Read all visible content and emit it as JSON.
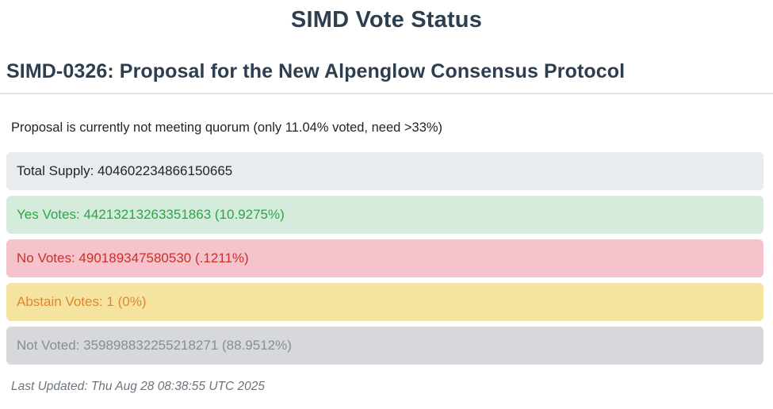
{
  "page": {
    "title": "SIMD Vote Status",
    "heading": "SIMD-0326: Proposal for the New Alpenglow Consensus Protocol",
    "quorum_status": "Proposal is currently not meeting quorum (only 11.04% voted, need >33%)",
    "quorum_voted_percent": "11.04%",
    "quorum_needed_percent": ">33%",
    "last_updated": "Last Updated: Thu Aug 28 08:38:55 UTC 2025"
  },
  "colors": {
    "heading_text": "#2c3e50",
    "divider": "#e2e6ea",
    "body_text": "#212529",
    "muted_text": "#6c757d"
  },
  "rows": [
    {
      "label": "Total Supply",
      "value": "404602234866150665",
      "percent": null,
      "text": "Total Supply: 404602234866150665",
      "bg": "#e9ecef",
      "fg": "#212529"
    },
    {
      "label": "Yes Votes",
      "value": "44213213263351863",
      "percent": "10.9275%",
      "text": "Yes Votes: 44213213263351863 (10.9275%)",
      "bg": "#d5ecdd",
      "fg": "#28a745"
    },
    {
      "label": "No Votes",
      "value": "490189347580530",
      "percent": ".1211%",
      "text": "No Votes: 490189347580530 (.1211%)",
      "bg": "#f5c3cb",
      "fg": "#c9302c"
    },
    {
      "label": "Abstain Votes",
      "value": "1",
      "percent": "0%",
      "text": "Abstain Votes: 1 (0%)",
      "bg": "#f5e3a0",
      "fg": "#e1862c"
    },
    {
      "label": "Not Voted",
      "value": "359898832255218271",
      "percent": "88.9512%",
      "text": "Not Voted: 359898832255218271 (88.9512%)",
      "bg": "#d6d8db",
      "fg": "#868e96"
    }
  ]
}
